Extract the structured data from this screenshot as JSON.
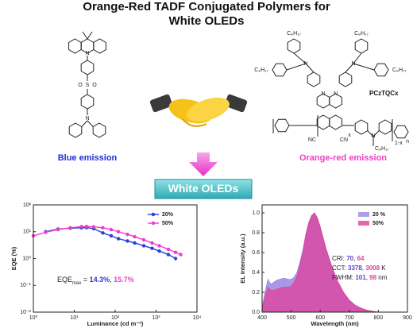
{
  "title_lines": [
    "Orange-Red TADF Conjugated Polymers for",
    "White OLEDs"
  ],
  "left_caption": "Blue emission",
  "right_caption": "Orange-red emission",
  "polymer_name": "PCzTQCx",
  "banner": "White OLEDs",
  "left_structure_texts": [
    "N",
    "S",
    "O",
    "O",
    "N"
  ],
  "right_structure_texts": [
    "C₈H₁₇",
    "C₈H₁₇",
    "C₈H₁₇",
    "C₈H₁₇",
    "N",
    "N",
    "N",
    "N",
    "NC",
    "CN",
    "N",
    "C₈H₁₇",
    "x",
    "1-x",
    "n"
  ],
  "chart_data": [
    {
      "type": "line",
      "xlabel": "Luminance (cd m⁻²)",
      "ylabel": "EQE (%)",
      "log_x": true,
      "log_y": true,
      "xlim": [
        1,
        10000
      ],
      "ylim": [
        0.01,
        100
      ],
      "xticks": [
        {
          "value": 1,
          "label": "10⁰"
        },
        {
          "value": 10,
          "label": "10¹"
        },
        {
          "value": 100,
          "label": "10²"
        },
        {
          "value": 1000,
          "label": "10³"
        },
        {
          "value": 10000,
          "label": "10⁴"
        }
      ],
      "yticks": [
        {
          "value": 0.01,
          "label": "10⁻²"
        },
        {
          "value": 0.1,
          "label": "10⁻¹"
        },
        {
          "value": 1,
          "label": "10⁰"
        },
        {
          "value": 10,
          "label": "10¹"
        },
        {
          "value": 100,
          "label": "10²"
        }
      ],
      "legend": "upper right",
      "series": [
        {
          "name": "20%",
          "color": "#2a3fd6",
          "x": [
            2,
            4,
            8,
            15,
            20,
            30,
            50,
            80,
            120,
            200,
            300,
            500,
            800,
            1200,
            2000,
            3000
          ],
          "values": [
            10,
            12.5,
            13.5,
            14,
            14.3,
            13,
            9,
            7,
            5.5,
            4.5,
            3.8,
            3,
            2.4,
            1.9,
            1.4,
            1.0
          ]
        },
        {
          "name": "50%",
          "color": "#f03cc8",
          "x": [
            1,
            2,
            4,
            8,
            15,
            20,
            30,
            50,
            80,
            120,
            200,
            300,
            500,
            800,
            1200,
            2000,
            3000,
            4000
          ],
          "values": [
            7,
            9.5,
            12,
            14,
            15.5,
            15.7,
            15.2,
            14,
            12,
            10,
            8,
            6.5,
            5,
            3.8,
            3,
            2.2,
            1.7,
            1.4
          ]
        }
      ],
      "annotations": [
        [
          {
            "text": "EQE"
          },
          {
            "text": "max",
            "sub": true
          },
          {
            "text": " = "
          },
          {
            "text": "14.3%",
            "color": "#2a3fd6"
          },
          {
            "text": ", "
          },
          {
            "text": "15.7%",
            "color": "#f03cc8"
          }
        ]
      ]
    },
    {
      "type": "area",
      "xlabel": "Wavelength (nm)",
      "ylabel": "EL Intensity (a.u.)",
      "xlim": [
        400,
        900
      ],
      "ylim": [
        0,
        1.08
      ],
      "xticks": [
        400,
        500,
        600,
        700,
        800,
        900
      ],
      "yticks": [
        {
          "value": 0,
          "label": "0.0"
        },
        {
          "value": 0.2,
          "label": "0.2"
        },
        {
          "value": 0.4,
          "label": "0.4"
        },
        {
          "value": 0.6,
          "label": "0.6"
        },
        {
          "value": 0.8,
          "label": "0.8"
        },
        {
          "value": 1,
          "label": "1.0"
        }
      ],
      "legend": "upper right",
      "x": [
        400,
        410,
        420,
        430,
        440,
        450,
        460,
        470,
        480,
        490,
        500,
        510,
        520,
        530,
        540,
        550,
        560,
        570,
        580,
        590,
        600,
        610,
        620,
        640,
        660,
        680,
        700,
        720,
        740,
        760,
        780,
        800
      ],
      "series": [
        {
          "name": "20 %",
          "color": "#9a86e0",
          "values": [
            0.05,
            0.2,
            0.33,
            0.28,
            0.3,
            0.32,
            0.33,
            0.34,
            0.34,
            0.33,
            0.33,
            0.35,
            0.4,
            0.5,
            0.62,
            0.78,
            0.9,
            0.97,
            1.0,
            0.95,
            0.85,
            0.74,
            0.63,
            0.45,
            0.3,
            0.2,
            0.12,
            0.07,
            0.04,
            0.02,
            0.01,
            0.0
          ]
        },
        {
          "name": "50%",
          "color": "#e0409a",
          "values": [
            0.03,
            0.15,
            0.25,
            0.22,
            0.22,
            0.23,
            0.24,
            0.25,
            0.25,
            0.25,
            0.26,
            0.3,
            0.36,
            0.47,
            0.6,
            0.76,
            0.89,
            0.97,
            1.0,
            0.95,
            0.86,
            0.75,
            0.64,
            0.46,
            0.31,
            0.2,
            0.12,
            0.07,
            0.04,
            0.02,
            0.01,
            0.0
          ]
        }
      ],
      "annotations": [
        [
          {
            "text": "CRI: "
          },
          {
            "text": "70",
            "color": "#5a3fd0"
          },
          {
            "text": ", "
          },
          {
            "text": "64",
            "color": "#e0409a"
          }
        ],
        [
          {
            "text": "CCT: "
          },
          {
            "text": "3378",
            "color": "#5a3fd0"
          },
          {
            "text": ", "
          },
          {
            "text": "3008",
            "color": "#e0409a"
          },
          {
            "text": " K"
          }
        ],
        [
          {
            "text": "FWHM: "
          },
          {
            "text": "101",
            "color": "#5a3fd0"
          },
          {
            "text": ", "
          },
          {
            "text": "98",
            "color": "#e0409a"
          },
          {
            "text": " nm"
          }
        ]
      ]
    }
  ]
}
